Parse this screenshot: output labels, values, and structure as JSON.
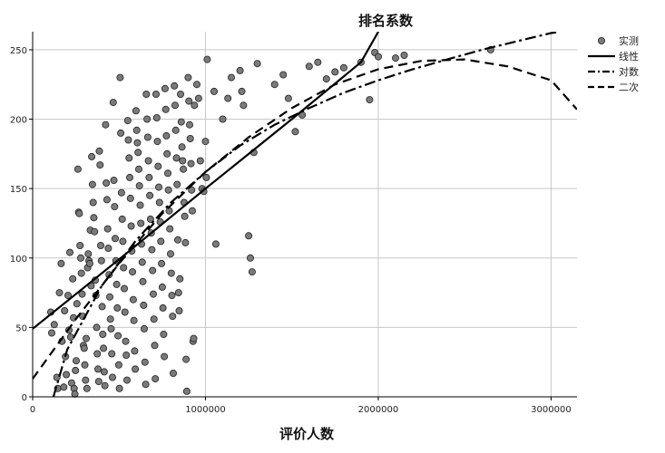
{
  "chart_data": {
    "type": "scatter",
    "title": "排名系数",
    "xlabel": "评价人数",
    "ylabel": "",
    "xlim": [
      0,
      3150000
    ],
    "ylim": [
      0,
      263
    ],
    "xticks": [
      0,
      1000000,
      2000000,
      3000000
    ],
    "yticks": [
      0,
      50,
      100,
      150,
      200,
      250
    ],
    "grid": true,
    "legend_position": "top-right",
    "colors": {
      "points": "#7a7a7a",
      "lines": "#000000",
      "grid": "#c8c8c8"
    },
    "legend": [
      {
        "name": "实测",
        "style": "marker"
      },
      {
        "name": "线性",
        "style": "solid"
      },
      {
        "name": "对数",
        "style": "dashdot"
      },
      {
        "name": "二次",
        "style": "dashed"
      }
    ],
    "series": [
      {
        "name": "实测",
        "kind": "points",
        "points": [
          [
            105000,
            61
          ],
          [
            110000,
            46
          ],
          [
            125000,
            52
          ],
          [
            140000,
            14
          ],
          [
            145000,
            6
          ],
          [
            155000,
            75
          ],
          [
            165000,
            96
          ],
          [
            170000,
            40
          ],
          [
            180000,
            7
          ],
          [
            185000,
            62
          ],
          [
            190000,
            29
          ],
          [
            195000,
            16
          ],
          [
            205000,
            73
          ],
          [
            210000,
            48
          ],
          [
            215000,
            104
          ],
          [
            220000,
            43
          ],
          [
            225000,
            10
          ],
          [
            232000,
            85
          ],
          [
            236000,
            57
          ],
          [
            240000,
            6
          ],
          [
            244000,
            2
          ],
          [
            248000,
            19
          ],
          [
            252000,
            26
          ],
          [
            256000,
            67
          ],
          [
            262000,
            164
          ],
          [
            266000,
            133
          ],
          [
            270000,
            132
          ],
          [
            274000,
            109
          ],
          [
            278000,
            100
          ],
          [
            282000,
            89
          ],
          [
            286000,
            74
          ],
          [
            290000,
            58
          ],
          [
            294000,
            37
          ],
          [
            298000,
            35
          ],
          [
            302000,
            23
          ],
          [
            306000,
            12
          ],
          [
            310000,
            42
          ],
          [
            314000,
            6
          ],
          [
            318000,
            93
          ],
          [
            322000,
            103
          ],
          [
            326000,
            98
          ],
          [
            330000,
            96
          ],
          [
            334000,
            120
          ],
          [
            338000,
            80
          ],
          [
            342000,
            173
          ],
          [
            346000,
            153
          ],
          [
            350000,
            140
          ],
          [
            354000,
            129
          ],
          [
            358000,
            119
          ],
          [
            362000,
            84
          ],
          [
            366000,
            73
          ],
          [
            370000,
            50
          ],
          [
            374000,
            31
          ],
          [
            378000,
            20
          ],
          [
            382000,
            11
          ],
          [
            386000,
            177
          ],
          [
            390000,
            167
          ],
          [
            394000,
            109
          ],
          [
            398000,
            98
          ],
          [
            402000,
            65
          ],
          [
            406000,
            45
          ],
          [
            410000,
            35
          ],
          [
            414000,
            18
          ],
          [
            418000,
            8
          ],
          [
            422000,
            196
          ],
          [
            426000,
            154
          ],
          [
            430000,
            142
          ],
          [
            434000,
            121
          ],
          [
            438000,
            107
          ],
          [
            442000,
            88
          ],
          [
            446000,
            72
          ],
          [
            450000,
            56
          ],
          [
            454000,
            49
          ],
          [
            458000,
            31
          ],
          [
            462000,
            14
          ],
          [
            466000,
            212
          ],
          [
            470000,
            156
          ],
          [
            474000,
            137
          ],
          [
            478000,
            114
          ],
          [
            482000,
            98
          ],
          [
            486000,
            81
          ],
          [
            490000,
            64
          ],
          [
            494000,
            44
          ],
          [
            498000,
            23
          ],
          [
            502000,
            6
          ],
          [
            506000,
            230
          ],
          [
            510000,
            190
          ],
          [
            514000,
            147
          ],
          [
            518000,
            128
          ],
          [
            522000,
            112
          ],
          [
            526000,
            93
          ],
          [
            530000,
            78
          ],
          [
            534000,
            61
          ],
          [
            538000,
            40
          ],
          [
            542000,
            30
          ],
          [
            546000,
            12
          ],
          [
            550000,
            199
          ],
          [
            554000,
            185
          ],
          [
            558000,
            172
          ],
          [
            562000,
            158
          ],
          [
            566000,
            143
          ],
          [
            570000,
            123
          ],
          [
            574000,
            105
          ],
          [
            578000,
            90
          ],
          [
            582000,
            70
          ],
          [
            586000,
            55
          ],
          [
            590000,
            33
          ],
          [
            594000,
            20
          ],
          [
            598000,
            206
          ],
          [
            602000,
            192
          ],
          [
            606000,
            183
          ],
          [
            610000,
            176
          ],
          [
            614000,
            164
          ],
          [
            618000,
            152
          ],
          [
            622000,
            138
          ],
          [
            626000,
            125
          ],
          [
            630000,
            110
          ],
          [
            634000,
            97
          ],
          [
            638000,
            83
          ],
          [
            642000,
            66
          ],
          [
            646000,
            49
          ],
          [
            650000,
            25
          ],
          [
            654000,
            9
          ],
          [
            658000,
            218
          ],
          [
            662000,
            200
          ],
          [
            666000,
            187
          ],
          [
            670000,
            170
          ],
          [
            674000,
            158
          ],
          [
            678000,
            145
          ],
          [
            682000,
            128
          ],
          [
            686000,
            118
          ],
          [
            690000,
            106
          ],
          [
            694000,
            91
          ],
          [
            698000,
            74
          ],
          [
            702000,
            56
          ],
          [
            706000,
            37
          ],
          [
            710000,
            13
          ],
          [
            714000,
            218
          ],
          [
            718000,
            201
          ],
          [
            722000,
            184
          ],
          [
            726000,
            166
          ],
          [
            730000,
            151
          ],
          [
            734000,
            140
          ],
          [
            738000,
            126
          ],
          [
            742000,
            112
          ],
          [
            746000,
            96
          ],
          [
            750000,
            79
          ],
          [
            754000,
            64
          ],
          [
            758000,
            45
          ],
          [
            762000,
            29
          ],
          [
            766000,
            222
          ],
          [
            770000,
            207
          ],
          [
            774000,
            188
          ],
          [
            778000,
            175
          ],
          [
            782000,
            161
          ],
          [
            786000,
            149
          ],
          [
            790000,
            134
          ],
          [
            794000,
            121
          ],
          [
            798000,
            103
          ],
          [
            802000,
            89
          ],
          [
            806000,
            73
          ],
          [
            810000,
            58
          ],
          [
            814000,
            17
          ],
          [
            820000,
            224
          ],
          [
            824000,
            210
          ],
          [
            828000,
            192
          ],
          [
            832000,
            172
          ],
          [
            836000,
            153
          ],
          [
            840000,
            113
          ],
          [
            844000,
            75
          ],
          [
            848000,
            62
          ],
          [
            852000,
            85
          ],
          [
            856000,
            218
          ],
          [
            860000,
            198
          ],
          [
            864000,
            180
          ],
          [
            868000,
            170
          ],
          [
            872000,
            164
          ],
          [
            876000,
            140
          ],
          [
            880000,
            130
          ],
          [
            884000,
            111
          ],
          [
            888000,
            27
          ],
          [
            892000,
            4
          ],
          [
            900000,
            230
          ],
          [
            904000,
            213
          ],
          [
            908000,
            196
          ],
          [
            912000,
            186
          ],
          [
            916000,
            168
          ],
          [
            920000,
            149
          ],
          [
            924000,
            134
          ],
          [
            928000,
            40
          ],
          [
            932000,
            42
          ],
          [
            936000,
            210
          ],
          [
            950000,
            225
          ],
          [
            960000,
            215
          ],
          [
            970000,
            170
          ],
          [
            980000,
            150
          ],
          [
            990000,
            148
          ],
          [
            1000000,
            184
          ],
          [
            1005000,
            158
          ],
          [
            1010000,
            243
          ],
          [
            1050000,
            220
          ],
          [
            1060000,
            110
          ],
          [
            1100000,
            200
          ],
          [
            1130000,
            215
          ],
          [
            1150000,
            230
          ],
          [
            1200000,
            235
          ],
          [
            1210000,
            220
          ],
          [
            1220000,
            210
          ],
          [
            1250000,
            116
          ],
          [
            1260000,
            100
          ],
          [
            1270000,
            90
          ],
          [
            1280000,
            176
          ],
          [
            1300000,
            240
          ],
          [
            1400000,
            225
          ],
          [
            1450000,
            232
          ],
          [
            1480000,
            215
          ],
          [
            1520000,
            191
          ],
          [
            1560000,
            203
          ],
          [
            1600000,
            238
          ],
          [
            1650000,
            241
          ],
          [
            1700000,
            229
          ],
          [
            1750000,
            234
          ],
          [
            1800000,
            237
          ],
          [
            1900000,
            241
          ],
          [
            1950000,
            214
          ],
          [
            1980000,
            248
          ],
          [
            2000000,
            245
          ],
          [
            2100000,
            244
          ],
          [
            2150000,
            246
          ],
          [
            2650000,
            250
          ]
        ]
      },
      {
        "name": "线性",
        "kind": "line",
        "points": [
          [
            0,
            49
          ],
          [
            500000,
            99
          ],
          [
            1000000,
            150
          ],
          [
            1500000,
            200
          ],
          [
            1900000,
            241
          ],
          [
            2000000,
            263
          ]
        ]
      },
      {
        "name": "对数",
        "kind": "line",
        "points": [
          [
            120000,
            0
          ],
          [
            200000,
            34
          ],
          [
            400000,
            80
          ],
          [
            600000,
            113
          ],
          [
            800000,
            140
          ],
          [
            1000000,
            162
          ],
          [
            1200000,
            181
          ],
          [
            1400000,
            196
          ],
          [
            1600000,
            208
          ],
          [
            1800000,
            219
          ],
          [
            2000000,
            228
          ],
          [
            2200000,
            236
          ],
          [
            2400000,
            243
          ],
          [
            2600000,
            250
          ],
          [
            2800000,
            256
          ],
          [
            3000000,
            262
          ],
          [
            3050000,
            263
          ]
        ]
      },
      {
        "name": "二次",
        "kind": "line",
        "points": [
          [
            0,
            13
          ],
          [
            250000,
            56
          ],
          [
            500000,
            96
          ],
          [
            750000,
            132
          ],
          [
            1000000,
            162
          ],
          [
            1250000,
            187
          ],
          [
            1500000,
            208
          ],
          [
            1750000,
            225
          ],
          [
            2000000,
            236
          ],
          [
            2250000,
            242
          ],
          [
            2500000,
            243
          ],
          [
            2750000,
            238
          ],
          [
            3000000,
            228
          ],
          [
            3150000,
            207
          ]
        ]
      }
    ]
  }
}
